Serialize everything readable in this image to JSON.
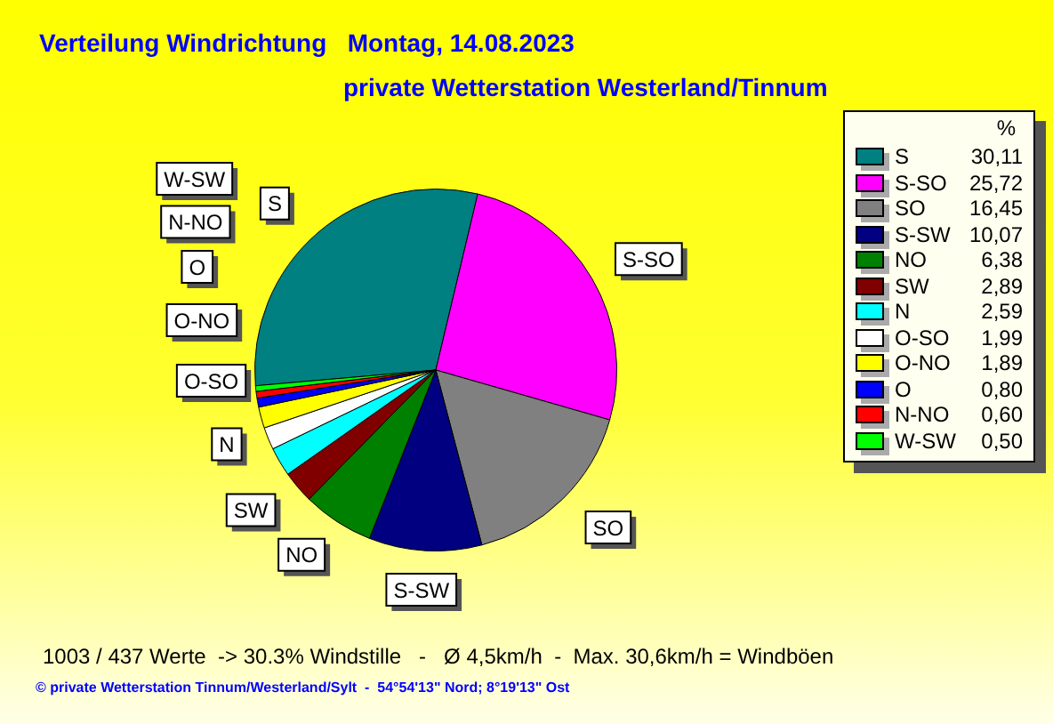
{
  "chart_data": {
    "type": "pie",
    "title": "Verteilung Windrichtung   Montag, 14.08.2023",
    "subtitle": "private Wetterstation Westerland/Tinnum",
    "legend_title": "%",
    "legend": "right",
    "categories": [
      "S",
      "S-SO",
      "SO",
      "S-SW",
      "NO",
      "SW",
      "N",
      "O-SO",
      "O-NO",
      "O",
      "N-NO",
      "W-SW"
    ],
    "values": [
      30.11,
      25.72,
      16.45,
      10.07,
      6.38,
      2.89,
      2.59,
      1.99,
      1.89,
      0.8,
      0.6,
      0.5
    ],
    "value_labels": [
      "30,11",
      "25,72",
      "16,45",
      "10,07",
      "6,38",
      "2,89",
      "2,59",
      "1,99",
      "1,89",
      "0,80",
      "0,60",
      "0,50"
    ],
    "colors": [
      "#008080",
      "#ff00ff",
      "#808080",
      "#000080",
      "#008000",
      "#800000",
      "#00ffff",
      "#ffffff",
      "#ffff00",
      "#0000ff",
      "#ff0000",
      "#00ff00"
    ],
    "annotations": [
      "1003 / 437 Werte  -> 30.3% Windstille   -   Ø 4,5km/h  -  Max. 30,6km/h = Windböen",
      "© private Wetterstation Tinnum/Westerland/Sylt  -  54°54'13\" Nord; 8°19'13\" Ost"
    ]
  }
}
